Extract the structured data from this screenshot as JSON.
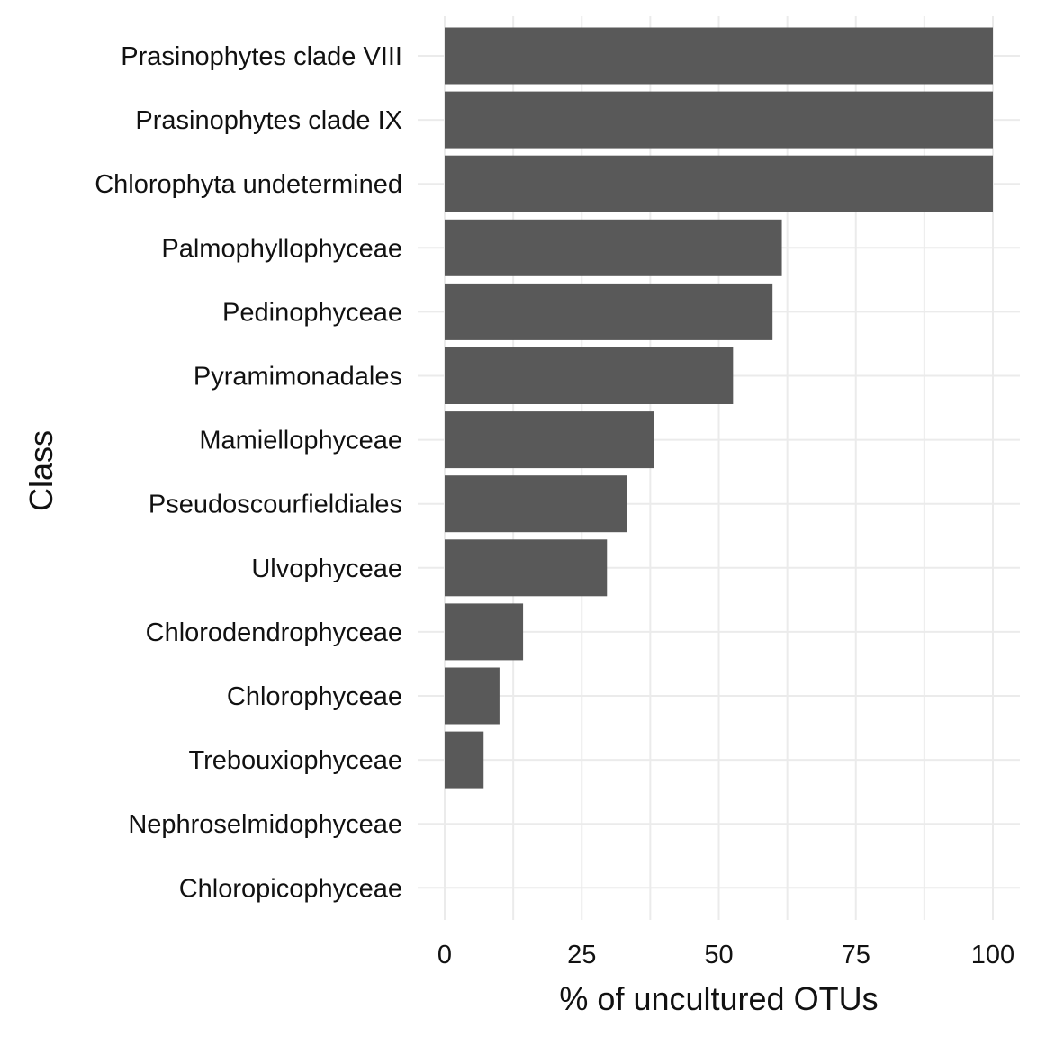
{
  "chart_data": {
    "type": "bar",
    "orientation": "horizontal",
    "title": "",
    "xlabel": "% of uncultured OTUs",
    "ylabel": "Class",
    "xlim": [
      0,
      100
    ],
    "x_ticks": [
      "0",
      "25",
      "50",
      "75",
      "100"
    ],
    "x_tick_values": [
      0,
      25,
      50,
      75,
      100
    ],
    "grid": true,
    "legend": "none",
    "categories": [
      "Prasinophytes clade VIII",
      "Prasinophytes clade IX",
      "Chlorophyta undetermined",
      "Palmophyllophyceae",
      "Pedinophyceae",
      "Pyramimonadales",
      "Mamiellophyceae",
      "Pseudoscourfieldiales",
      "Ulvophyceae",
      "Chlorodendrophyceae",
      "Chlorophyceae",
      "Trebouxiophyceae",
      "Nephroselmidophyceae",
      "Chloropicophyceae"
    ],
    "values": [
      100,
      100,
      100,
      61.5,
      59.8,
      52.6,
      38.1,
      33.3,
      29.6,
      14.3,
      10.0,
      7.1,
      0,
      0
    ],
    "colors": {
      "bar": "#595959",
      "grid": "#ebebeb",
      "text": "#111111",
      "background": "#ffffff"
    }
  }
}
